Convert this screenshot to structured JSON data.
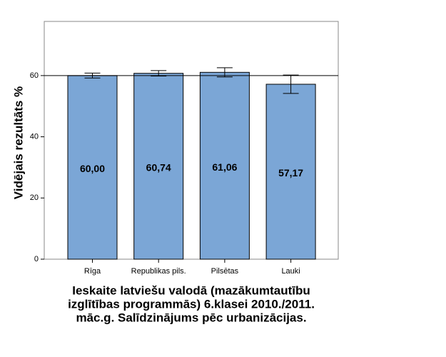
{
  "chart_data": {
    "type": "bar",
    "ylabel": "Vidējais rezultāts %",
    "xlabel_lines": [
      "Ieskaite latviešu valodā (mazākumtautību",
      "izglītības programmās) 6.klasei 2010./2011.",
      "māc.g. Salīdzinājums pēc urbanizācijas."
    ],
    "categories": [
      "Rīga",
      "Republikas pils.",
      "Pilsētas",
      "Lauki"
    ],
    "values": [
      60.0,
      60.74,
      61.06,
      57.17
    ],
    "value_labels": [
      "60,00",
      "60,74",
      "61,06",
      "57,17"
    ],
    "errors": [
      0.8,
      0.9,
      1.5,
      3.0
    ],
    "reference_line": 60,
    "color": "#7ba6d6",
    "ylim": [
      0,
      77.7
    ],
    "yticks": [
      0,
      20,
      40,
      60
    ]
  }
}
